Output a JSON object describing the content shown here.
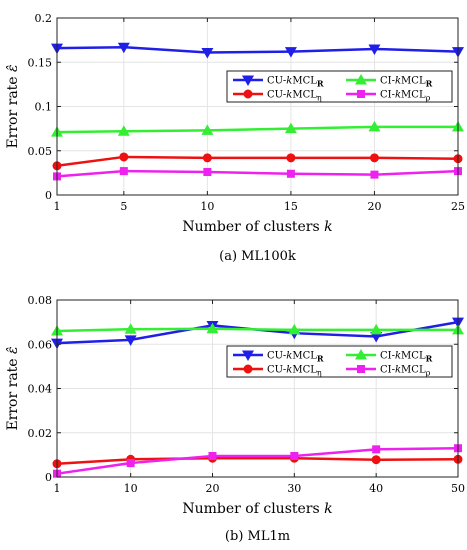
{
  "chart_data": [
    {
      "type": "line",
      "caption": "(a)  ML100k",
      "xlabel": "Number of clusters k",
      "ylabel": "Error rate ε̂",
      "x": [
        1,
        5,
        10,
        15,
        20,
        25
      ],
      "xticks": [
        "1",
        "5",
        "10",
        "15",
        "20",
        "25"
      ],
      "xlim": [
        1,
        25
      ],
      "ylim": [
        0,
        0.2
      ],
      "yticks": [
        {
          "v": 0,
          "label": "0"
        },
        {
          "v": 0.05,
          "label": "0.05"
        },
        {
          "v": 0.1,
          "label": "0.1"
        },
        {
          "v": 0.15,
          "label": "0.15"
        },
        {
          "v": 0.2,
          "label": "0.2"
        }
      ],
      "grid": true,
      "legend_position": "upper-right",
      "series": [
        {
          "name": "CU-kMCL_R",
          "legend": [
            [
              "CU-",
              ""
            ],
            [
              "k",
              "i"
            ],
            [
              "MCL",
              ""
            ],
            [
              "R",
              "sb"
            ]
          ],
          "color": "#1f1fe8",
          "marker": "triangle-down",
          "values": [
            0.166,
            0.167,
            0.161,
            0.162,
            0.165,
            0.162
          ]
        },
        {
          "name": "CI-kMCL_R",
          "legend": [
            [
              "CI-",
              ""
            ],
            [
              "k",
              "i"
            ],
            [
              "MCL",
              ""
            ],
            [
              "R",
              "sb"
            ]
          ],
          "color": "#33ee33",
          "marker": "triangle-up",
          "values": [
            0.071,
            0.072,
            0.073,
            0.075,
            0.077,
            0.077
          ]
        },
        {
          "name": "CU-kMCL_η",
          "legend": [
            [
              "CU-",
              ""
            ],
            [
              "k",
              "i"
            ],
            [
              "MCL",
              ""
            ],
            [
              "η",
              "s"
            ]
          ],
          "color": "#ee1111",
          "marker": "circle",
          "values": [
            0.033,
            0.043,
            0.042,
            0.042,
            0.042,
            0.041
          ]
        },
        {
          "name": "CI-kMCL_ρ",
          "legend": [
            [
              "CI-",
              ""
            ],
            [
              "k",
              "i"
            ],
            [
              "MCL",
              ""
            ],
            [
              "ρ",
              "s"
            ]
          ],
          "color": "#ee22ee",
          "marker": "square",
          "values": [
            0.021,
            0.027,
            0.026,
            0.024,
            0.023,
            0.027
          ]
        }
      ]
    },
    {
      "type": "line",
      "caption": "(b)  ML1m",
      "xlabel": "Number of clusters k",
      "ylabel": "Error rate ε̂",
      "x": [
        1,
        10,
        20,
        30,
        40,
        50
      ],
      "xticks": [
        "1",
        "10",
        "20",
        "30",
        "40",
        "50"
      ],
      "xlim": [
        1,
        50
      ],
      "ylim": [
        0,
        0.08
      ],
      "yticks": [
        {
          "v": 0,
          "label": "0"
        },
        {
          "v": 0.02,
          "label": "0.02"
        },
        {
          "v": 0.04,
          "label": "0.04"
        },
        {
          "v": 0.06,
          "label": "0.06"
        },
        {
          "v": 0.08,
          "label": "0.08"
        }
      ],
      "grid": true,
      "legend_position": "right",
      "series": [
        {
          "name": "CU-kMCL_R",
          "legend": [
            [
              "CU-",
              ""
            ],
            [
              "k",
              "i"
            ],
            [
              "MCL",
              ""
            ],
            [
              "R",
              "sb"
            ]
          ],
          "color": "#1f1fe8",
          "marker": "triangle-down",
          "values": [
            0.0605,
            0.062,
            0.0685,
            0.065,
            0.0635,
            0.07
          ]
        },
        {
          "name": "CI-kMCL_R",
          "legend": [
            [
              "CI-",
              ""
            ],
            [
              "k",
              "i"
            ],
            [
              "MCL",
              ""
            ],
            [
              "R",
              "sb"
            ]
          ],
          "color": "#33ee33",
          "marker": "triangle-up",
          "values": [
            0.066,
            0.0668,
            0.067,
            0.0665,
            0.0665,
            0.0665
          ]
        },
        {
          "name": "CU-kMCL_η",
          "legend": [
            [
              "CU-",
              ""
            ],
            [
              "k",
              "i"
            ],
            [
              "MCL",
              ""
            ],
            [
              "η",
              "s"
            ]
          ],
          "color": "#ee1111",
          "marker": "circle",
          "values": [
            0.006,
            0.008,
            0.0085,
            0.0085,
            0.0078,
            0.008
          ]
        },
        {
          "name": "CI-kMCL_ρ",
          "legend": [
            [
              "CI-",
              ""
            ],
            [
              "k",
              "i"
            ],
            [
              "MCL",
              ""
            ],
            [
              "ρ",
              "s"
            ]
          ],
          "color": "#ee22ee",
          "marker": "square",
          "values": [
            0.0015,
            0.0063,
            0.0095,
            0.0095,
            0.0125,
            0.013
          ]
        }
      ]
    }
  ]
}
